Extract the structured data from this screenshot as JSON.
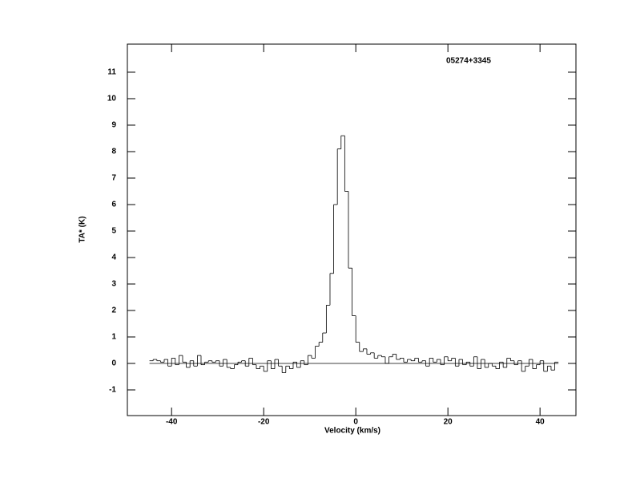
{
  "chart_data": {
    "type": "step",
    "title": "05274+3345",
    "x_label": "Velocity (km/s)",
    "y_label": "TA* (K)",
    "x": [
      -44.4,
      -43.6,
      -42.8,
      -42.0,
      -41.2,
      -40.4,
      -39.6,
      -38.8,
      -38.0,
      -37.2,
      -36.4,
      -35.6,
      -34.8,
      -34.0,
      -33.2,
      -32.4,
      -31.6,
      -30.8,
      -30.0,
      -29.2,
      -28.4,
      -27.6,
      -26.8,
      -26.0,
      -25.2,
      -24.4,
      -23.6,
      -22.8,
      -22.0,
      -21.2,
      -20.4,
      -19.6,
      -18.8,
      -18.0,
      -17.2,
      -16.4,
      -15.6,
      -14.8,
      -14.0,
      -13.2,
      -12.4,
      -11.6,
      -10.8,
      -10.0,
      -9.2,
      -8.4,
      -7.6,
      -6.8,
      -6.0,
      -5.2,
      -4.4,
      -3.6,
      -2.8,
      -2.0,
      -1.2,
      -0.4,
      0.4,
      1.2,
      2.0,
      2.8,
      3.6,
      4.4,
      5.2,
      6.0,
      6.8,
      7.6,
      8.4,
      9.2,
      10.0,
      10.8,
      11.6,
      12.4,
      13.2,
      14.0,
      14.8,
      15.6,
      16.4,
      17.2,
      18.0,
      18.8,
      19.6,
      20.4,
      21.2,
      22.0,
      22.8,
      23.6,
      24.4,
      25.2,
      26.0,
      26.8,
      27.6,
      28.4,
      29.2,
      30.0,
      30.8,
      31.6,
      32.4,
      33.2,
      34.0,
      34.8,
      35.6,
      36.4,
      37.2,
      38.0,
      38.8,
      39.6,
      40.4,
      41.2,
      42.0,
      42.8,
      43.6
    ],
    "values": [
      0.1,
      0.15,
      0.1,
      0.05,
      0.15,
      -0.1,
      0.2,
      -0.05,
      0.3,
      0.05,
      -0.15,
      0.1,
      -0.1,
      0.3,
      -0.05,
      0.05,
      0.1,
      0.05,
      0.1,
      -0.1,
      0.15,
      -0.15,
      -0.2,
      -0.05,
      0.05,
      0.1,
      -0.1,
      0.2,
      -0.05,
      -0.2,
      -0.1,
      -0.3,
      0.1,
      -0.2,
      0.15,
      -0.1,
      -0.35,
      -0.1,
      -0.2,
      0.05,
      -0.15,
      0.1,
      -0.05,
      0.3,
      0.2,
      0.65,
      0.8,
      1.15,
      2.2,
      3.4,
      6.0,
      8.1,
      8.6,
      6.5,
      3.6,
      1.8,
      0.8,
      0.45,
      0.55,
      0.35,
      0.4,
      0.2,
      0.3,
      0.25,
      0.0,
      0.25,
      0.35,
      0.15,
      0.2,
      0.05,
      0.15,
      0.1,
      0.2,
      0.05,
      0.1,
      -0.1,
      0.2,
      0.05,
      0.15,
      -0.05,
      0.25,
      0.1,
      0.2,
      -0.1,
      0.15,
      -0.05,
      0.05,
      -0.1,
      0.25,
      -0.2,
      0.15,
      -0.15,
      0.0,
      -0.1,
      -0.2,
      0.05,
      -0.15,
      0.2,
      0.1,
      -0.05,
      0.1,
      -0.3,
      -0.1,
      0.15,
      -0.2,
      -0.05,
      0.1,
      -0.3,
      -0.1,
      -0.25,
      0.05
    ],
    "baseline": 0,
    "color": "#000000",
    "xlim": [
      -49.6,
      47.8
    ],
    "ylim": [
      -1.97,
      12.06
    ],
    "xticks": [
      -40,
      -20,
      0,
      20,
      40
    ],
    "yticks": [
      -1,
      0,
      1,
      2,
      3,
      4,
      5,
      6,
      7,
      8,
      9,
      10,
      11
    ]
  }
}
